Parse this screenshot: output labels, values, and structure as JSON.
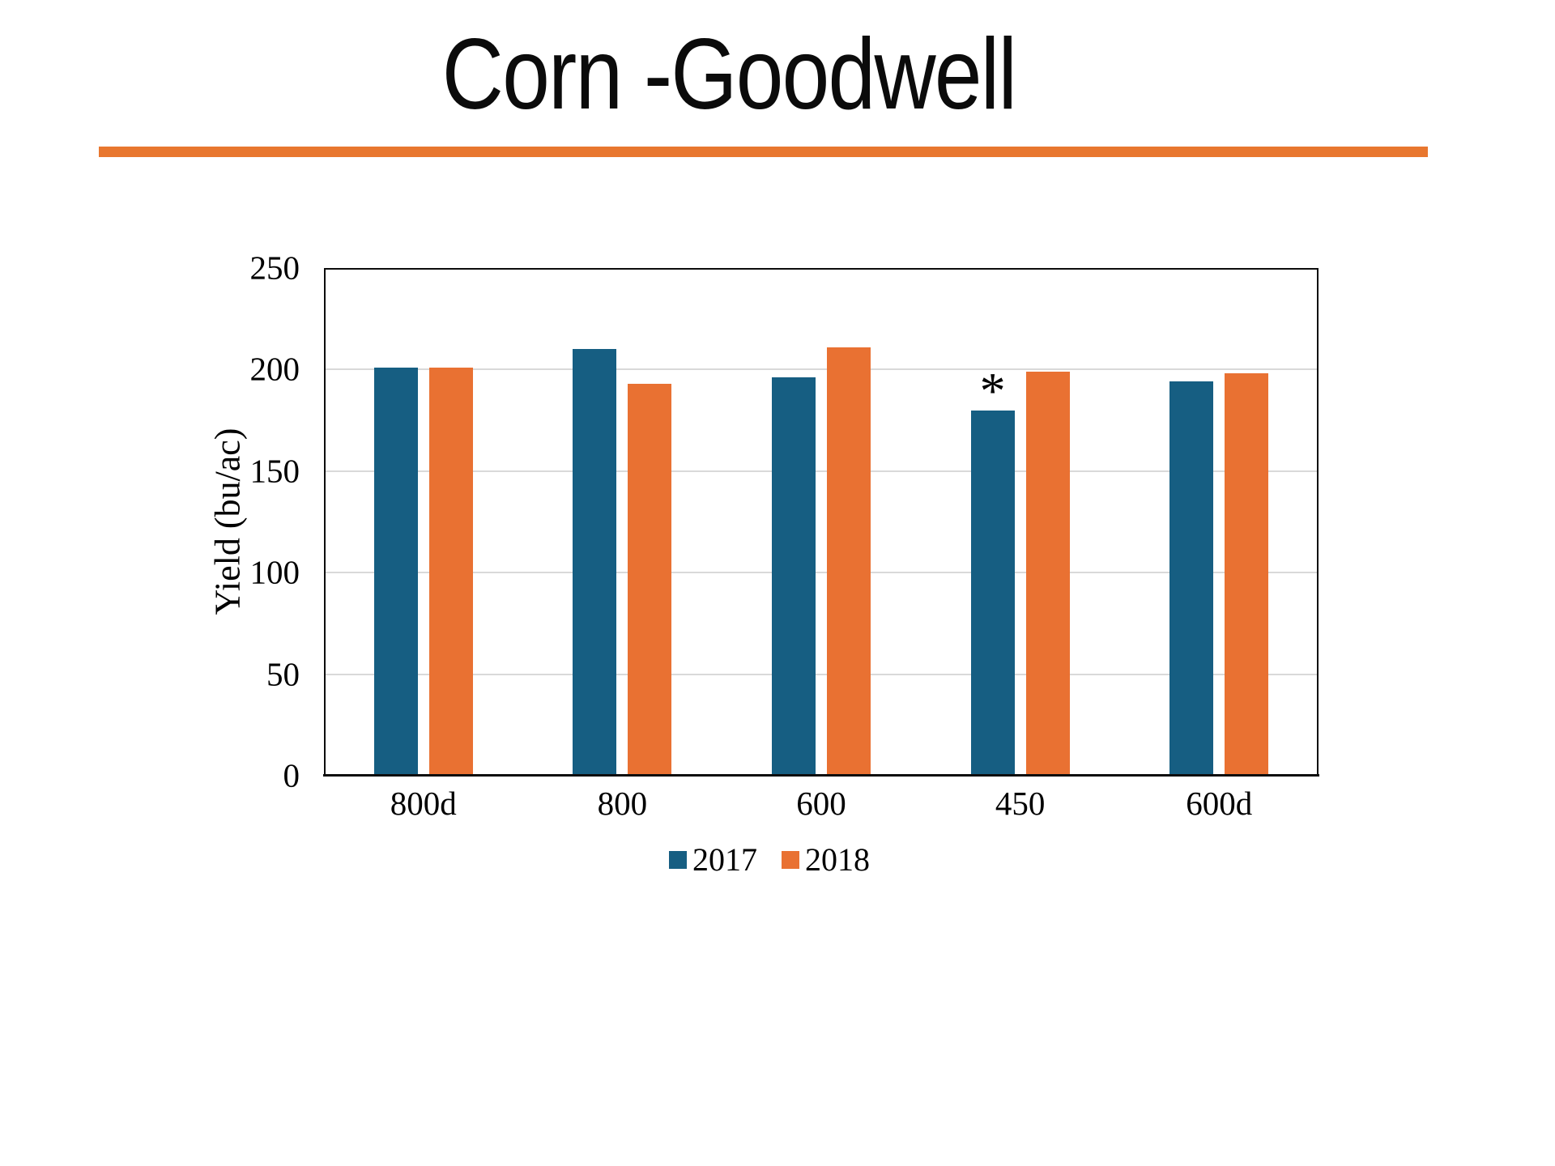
{
  "title": "Corn -Goodwell",
  "accent_rule_color": "#e8772f",
  "chart_data": {
    "type": "bar",
    "title": "Corn -Goodwell",
    "categories": [
      "800d",
      "800",
      "600",
      "450",
      "600d"
    ],
    "series": [
      {
        "name": "2017",
        "color": "#165e82",
        "values": [
          201,
          210,
          196,
          180,
          194
        ]
      },
      {
        "name": "2018",
        "color": "#e97132",
        "values": [
          201,
          193,
          211,
          199,
          198
        ]
      }
    ],
    "xlabel": "",
    "ylabel": "Yield (bu/ac)",
    "ylim": [
      0,
      250
    ],
    "yticks": [
      0,
      50,
      100,
      150,
      200,
      250
    ],
    "grid": true,
    "grid_color": "#d9d9d9",
    "legend_position": "bottom-center",
    "annotations": [
      {
        "series": "2017",
        "category": "450",
        "text": "*"
      }
    ]
  }
}
